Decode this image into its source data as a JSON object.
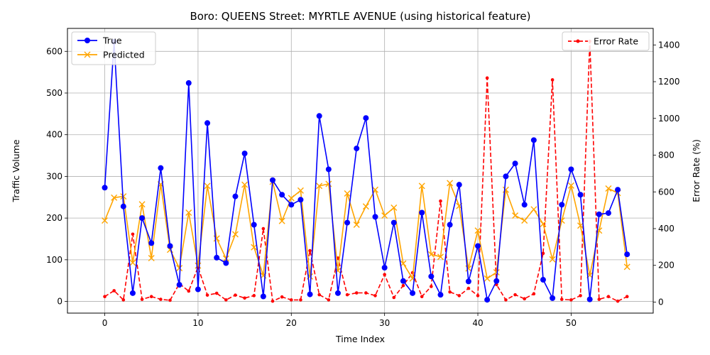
{
  "chart_data": {
    "type": "line",
    "title": "Boro: QUEENS Street: MYRTLE AVENUE (using historical feature)",
    "xlabel": "Time Index",
    "ylabel": "Traffic Volume",
    "y2label": "Error Rate (%)",
    "xlim": [
      -4,
      58.8
    ],
    "ylim": [
      -28,
      655
    ],
    "y2lim": [
      -60,
      1490
    ],
    "xticks": [
      0,
      10,
      20,
      30,
      40,
      50
    ],
    "yticks": [
      0,
      100,
      200,
      300,
      400,
      500,
      600
    ],
    "y2ticks": [
      0,
      200,
      400,
      600,
      800,
      1000,
      1200,
      1400
    ],
    "grid": true,
    "legend_left_placement": "upper-left",
    "legend_right_placement": "upper-right",
    "x": [
      0,
      1,
      2,
      3,
      4,
      5,
      6,
      7,
      8,
      9,
      10,
      11,
      12,
      13,
      14,
      15,
      16,
      17,
      18,
      19,
      20,
      21,
      22,
      23,
      24,
      25,
      26,
      27,
      28,
      29,
      30,
      31,
      32,
      33,
      34,
      35,
      36,
      37,
      38,
      39,
      40,
      41,
      42,
      43,
      44,
      45,
      46,
      47,
      48,
      49,
      50,
      51,
      52,
      53,
      54,
      55,
      56
    ],
    "series": [
      {
        "name": "True",
        "axis": "left",
        "color": "#0000ff",
        "marker": "circle",
        "values": [
          273,
          623,
          228,
          20,
          200,
          140,
          320,
          133,
          40,
          524,
          29,
          428,
          105,
          92,
          252,
          355,
          184,
          12,
          291,
          256,
          232,
          244,
          17,
          445,
          317,
          20,
          189,
          367,
          440,
          203,
          81,
          189,
          49,
          20,
          213,
          60,
          16,
          184,
          280,
          48,
          133,
          4,
          49,
          300,
          331,
          232,
          387,
          52,
          8,
          232,
          317,
          256,
          5,
          209,
          212,
          268,
          113
        ]
      },
      {
        "name": "Predicted",
        "axis": "left",
        "color": "#ffa500",
        "marker": "x",
        "values": [
          194,
          249,
          252,
          93,
          233,
          104,
          281,
          124,
          80,
          213,
          86,
          277,
          151,
          103,
          161,
          280,
          130,
          62,
          287,
          193,
          248,
          266,
          60,
          277,
          282,
          74,
          259,
          184,
          228,
          268,
          206,
          225,
          91,
          55,
          277,
          113,
          107,
          284,
          229,
          79,
          170,
          55,
          70,
          268,
          206,
          194,
          221,
          186,
          101,
          194,
          278,
          182,
          63,
          170,
          271,
          260,
          83
        ]
      },
      {
        "name": "Error Rate",
        "axis": "right",
        "color": "#ff0000",
        "marker": "dot",
        "values": [
          30,
          62,
          12,
          370,
          15,
          30,
          15,
          10,
          100,
          60,
          190,
          38,
          48,
          12,
          38,
          22,
          35,
          400,
          5,
          28,
          12,
          12,
          280,
          40,
          12,
          240,
          40,
          50,
          50,
          35,
          150,
          25,
          90,
          160,
          30,
          85,
          550,
          55,
          35,
          75,
          35,
          1220,
          95,
          12,
          40,
          18,
          45,
          265,
          1210,
          15,
          12,
          35,
          1420,
          15,
          30,
          5,
          30
        ]
      }
    ]
  }
}
